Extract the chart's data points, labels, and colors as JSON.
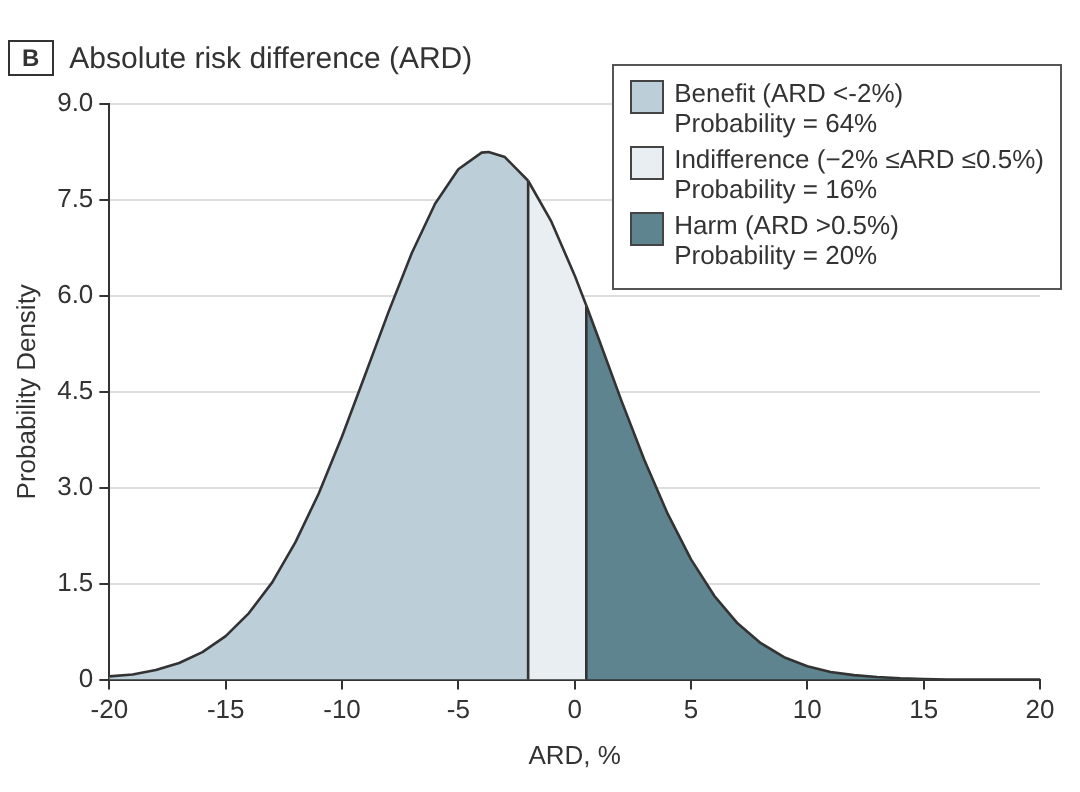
{
  "chart_data": {
    "type": "area",
    "title": "Absolute risk difference (ARD)",
    "xlabel": "ARD, %",
    "ylabel": "Probability Density",
    "xlim": [
      -20,
      20
    ],
    "xticks": [
      -20,
      -15,
      -10,
      -5,
      0,
      5,
      10,
      15,
      20
    ],
    "ylim": [
      0,
      9
    ],
    "yticks": [
      {
        "value": 0,
        "label": "0"
      },
      1.5,
      {
        "value": 3,
        "label": "3.0"
      },
      4.5,
      {
        "value": 6,
        "label": "6.0"
      },
      7.5,
      {
        "value": 9,
        "label": "9.0"
      }
    ],
    "grid": "y",
    "legend": "top right",
    "ref_lines": [
      {
        "axis": "x",
        "value": -2,
        "color": "#333333"
      },
      {
        "axis": "x",
        "value": 0.5,
        "color": "#333333"
      }
    ],
    "annotations": [
      "B",
      "Probability = 64%",
      "Probability = 16%",
      "Probability = 20%"
    ],
    "series": [
      {
        "name": "Benefit (ARD <-2%)",
        "color": "#bccfd8",
        "x": [
          -20,
          -19,
          -18,
          -17,
          -16,
          -15,
          -14,
          -13,
          -12,
          -11,
          -10,
          -9,
          -8,
          -7,
          -6,
          -5,
          -4,
          -3.7,
          -3,
          -2
        ],
        "values": [
          0.05,
          0.08,
          0.15,
          0.26,
          0.43,
          0.68,
          1.04,
          1.52,
          2.15,
          2.91,
          3.8,
          4.77,
          5.75,
          6.67,
          7.44,
          7.98,
          8.24,
          8.25,
          8.17,
          7.8
        ]
      },
      {
        "name": "Indifference (−2% ≤ARD ≤0.5%)",
        "color": "#e9eef2",
        "x": [
          -2,
          -1,
          0,
          0.5
        ],
        "values": [
          7.8,
          7.16,
          6.32,
          5.85
        ]
      },
      {
        "name": "Harm (ARD >0.5%)",
        "color": "#5e8490",
        "x": [
          0.5,
          1,
          2,
          3,
          4,
          5,
          6,
          7,
          8,
          9,
          10,
          11,
          12,
          13,
          14,
          15,
          16,
          20
        ],
        "values": [
          5.85,
          5.36,
          4.37,
          3.43,
          2.59,
          1.88,
          1.31,
          0.88,
          0.57,
          0.35,
          0.21,
          0.12,
          0.07,
          0.04,
          0.02,
          0.01,
          0,
          0
        ]
      }
    ]
  }
}
